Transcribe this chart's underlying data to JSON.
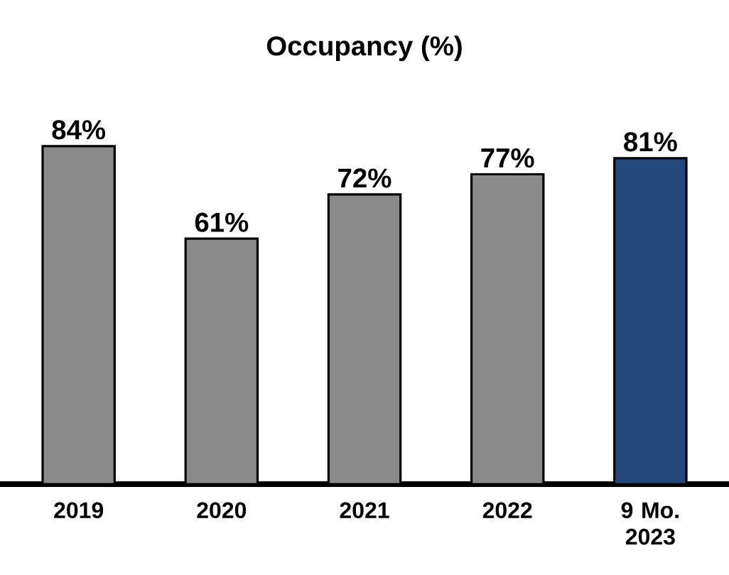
{
  "chart_data": {
    "type": "bar",
    "title": "Occupancy (%)",
    "categories": [
      "2019",
      "2020",
      "2021",
      "2022",
      "9 Mo. 2023"
    ],
    "values": [
      84,
      61,
      72,
      77,
      81
    ],
    "value_labels": [
      "84%",
      "61%",
      "72%",
      "77%",
      "81%"
    ],
    "colors": [
      "#8a8a8a",
      "#8a8a8a",
      "#8a8a8a",
      "#8a8a8a",
      "#23497a"
    ]
  }
}
